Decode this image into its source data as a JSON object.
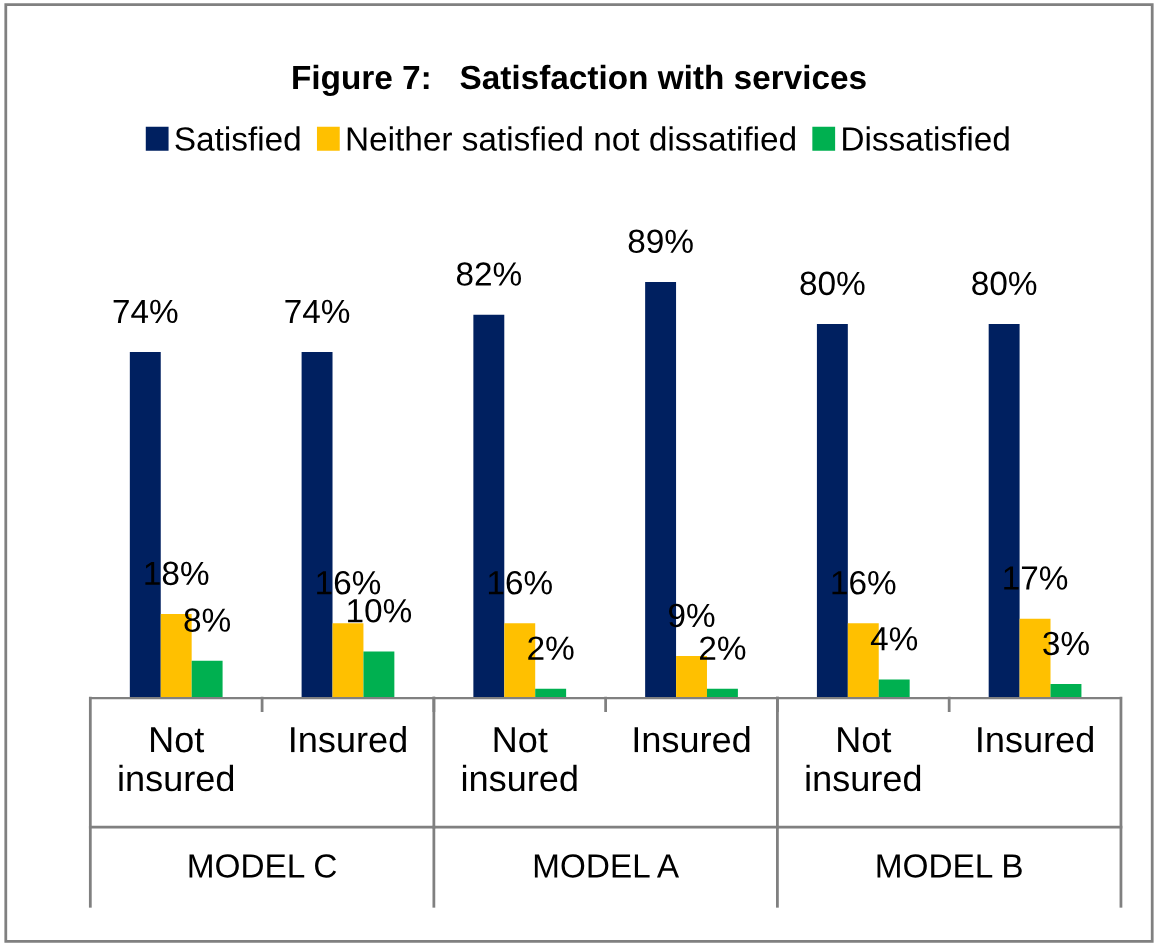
{
  "chart_data": {
    "type": "bar",
    "title": "Figure 7:   Satisfaction with services",
    "categories": [
      "Not insured",
      "Insured",
      "Not insured",
      "Insured",
      "Not insured",
      "Insured"
    ],
    "annotations": [
      "MODEL C",
      "MODEL A",
      "MODEL B"
    ],
    "series": [
      {
        "name": "Satisfied",
        "color": "#002060",
        "values": [
          74,
          74,
          82,
          89,
          80,
          80
        ],
        "value_labels": [
          "74%",
          "74%",
          "82%",
          "89%",
          "80%",
          "80%"
        ]
      },
      {
        "name": "Neither satisfied not dissatified",
        "color": "#ffc000",
        "values": [
          18,
          16,
          16,
          9,
          16,
          17
        ],
        "value_labels": [
          "18%",
          "16%",
          "16%",
          "9%",
          "16%",
          "17%"
        ]
      },
      {
        "name": "Dissatisfied",
        "color": "#00b050",
        "values": [
          8,
          10,
          2,
          2,
          4,
          3
        ],
        "value_labels": [
          "8%",
          "10%",
          "2%",
          "2%",
          "4%",
          "3%"
        ]
      }
    ],
    "legend": "top",
    "grid": false
  }
}
